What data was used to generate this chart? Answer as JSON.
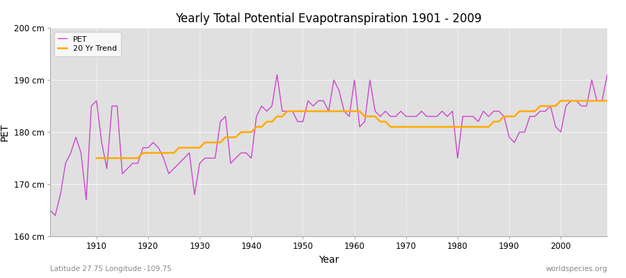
{
  "title": "Yearly Total Potential Evapotranspiration 1901 - 2009",
  "xlabel": "Year",
  "ylabel": "PET",
  "subtitle_left": "Latitude 27.75 Longitude -109.75",
  "subtitle_right": "worldspecies.org",
  "pet_color": "#cc44cc",
  "trend_color": "#ffaa00",
  "bg_color": "#ffffff",
  "plot_bg_color": "#e0e0e0",
  "ylim": [
    160,
    200
  ],
  "yticks": [
    160,
    170,
    180,
    190,
    200
  ],
  "ytick_labels": [
    "160 cm",
    "170 cm",
    "180 cm",
    "190 cm",
    "200 cm"
  ],
  "xlim": [
    1901,
    2009
  ],
  "xticks": [
    1910,
    1920,
    1930,
    1940,
    1950,
    1960,
    1970,
    1980,
    1990,
    2000
  ],
  "years": [
    1901,
    1902,
    1903,
    1904,
    1905,
    1906,
    1907,
    1908,
    1909,
    1910,
    1911,
    1912,
    1913,
    1914,
    1915,
    1916,
    1917,
    1918,
    1919,
    1920,
    1921,
    1922,
    1923,
    1924,
    1925,
    1926,
    1927,
    1928,
    1929,
    1930,
    1931,
    1932,
    1933,
    1934,
    1935,
    1936,
    1937,
    1938,
    1939,
    1940,
    1941,
    1942,
    1943,
    1944,
    1945,
    1946,
    1947,
    1948,
    1949,
    1950,
    1951,
    1952,
    1953,
    1954,
    1955,
    1956,
    1957,
    1958,
    1959,
    1960,
    1961,
    1962,
    1963,
    1964,
    1965,
    1966,
    1967,
    1968,
    1969,
    1970,
    1971,
    1972,
    1973,
    1974,
    1975,
    1976,
    1977,
    1978,
    1979,
    1980,
    1981,
    1982,
    1983,
    1984,
    1985,
    1986,
    1987,
    1988,
    1989,
    1990,
    1991,
    1992,
    1993,
    1994,
    1995,
    1996,
    1997,
    1998,
    1999,
    2000,
    2001,
    2002,
    2003,
    2004,
    2005,
    2006,
    2007,
    2008,
    2009
  ],
  "pet_values": [
    165,
    164,
    168,
    174,
    176,
    179,
    176,
    167,
    185,
    186,
    178,
    173,
    185,
    185,
    172,
    173,
    174,
    174,
    177,
    177,
    178,
    177,
    175,
    172,
    173,
    174,
    175,
    176,
    168,
    174,
    175,
    175,
    175,
    182,
    183,
    174,
    175,
    176,
    176,
    175,
    183,
    185,
    184,
    185,
    191,
    184,
    184,
    184,
    182,
    182,
    186,
    185,
    186,
    186,
    184,
    190,
    188,
    184,
    183,
    190,
    181,
    182,
    190,
    184,
    183,
    184,
    183,
    183,
    184,
    183,
    183,
    183,
    184,
    183,
    183,
    183,
    184,
    183,
    184,
    175,
    183,
    183,
    183,
    182,
    184,
    183,
    184,
    184,
    183,
    179,
    178,
    180,
    180,
    183,
    183,
    184,
    184,
    185,
    181,
    180,
    185,
    186,
    186,
    185,
    185,
    190,
    186,
    186,
    191
  ],
  "trend_values": [
    null,
    null,
    null,
    null,
    null,
    null,
    null,
    null,
    null,
    175,
    175,
    175,
    175,
    175,
    175,
    175,
    175,
    175,
    176,
    176,
    176,
    176,
    176,
    176,
    176,
    177,
    177,
    177,
    177,
    177,
    178,
    178,
    178,
    178,
    179,
    179,
    179,
    180,
    180,
    180,
    181,
    181,
    182,
    182,
    183,
    183,
    184,
    184,
    184,
    184,
    184,
    184,
    184,
    184,
    184,
    184,
    184,
    184,
    184,
    184,
    184,
    183,
    183,
    183,
    182,
    182,
    181,
    181,
    181,
    181,
    181,
    181,
    181,
    181,
    181,
    181,
    181,
    181,
    181,
    181,
    181,
    181,
    181,
    181,
    181,
    181,
    182,
    182,
    183,
    183,
    183,
    184,
    184,
    184,
    184,
    185,
    185,
    185,
    185,
    186,
    186,
    186,
    186,
    186,
    186,
    186,
    186,
    186,
    186
  ]
}
